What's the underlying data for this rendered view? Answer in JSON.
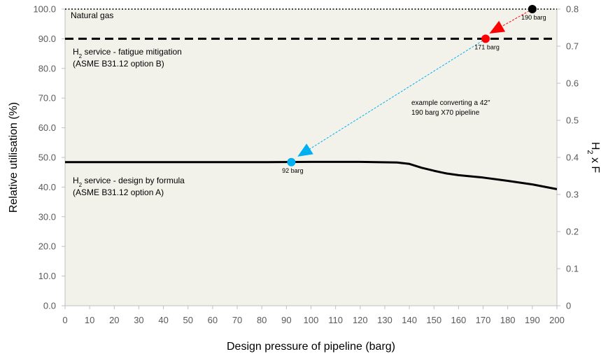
{
  "chart_data": {
    "type": "line",
    "xlabel": "Design pressure of pipeline (barg)",
    "ylabel": "Relative utilisation (%)",
    "y2label": "H₂ x F",
    "xlim": [
      0,
      200
    ],
    "ylim": [
      0,
      100
    ],
    "y2lim": [
      0,
      0.8
    ],
    "x_ticks": [
      "0",
      "10",
      "20",
      "30",
      "40",
      "50",
      "60",
      "70",
      "80",
      "90",
      "100",
      "110",
      "120",
      "130",
      "140",
      "150",
      "160",
      "170",
      "180",
      "190",
      "200"
    ],
    "y_ticks": [
      "0.0",
      "10.0",
      "20.0",
      "30.0",
      "40.0",
      "50.0",
      "60.0",
      "70.0",
      "80.0",
      "90.0",
      "100.0"
    ],
    "y2_ticks": [
      "0",
      "0.1",
      "0.2",
      "0.3",
      "0.4",
      "0.5",
      "0.6",
      "0.7",
      "0.8"
    ],
    "grid": false,
    "background": "#f2f2eb",
    "series": [
      {
        "key": "natural-gas",
        "color": "#000000",
        "style": "dotted",
        "points": [
          [
            0,
            100
          ],
          [
            200,
            100
          ]
        ]
      },
      {
        "key": "option-b",
        "color": "#000000",
        "style": "dashed",
        "points": [
          [
            0,
            90
          ],
          [
            200,
            90
          ]
        ]
      },
      {
        "key": "option-a",
        "color": "#000000",
        "style": "solid",
        "points": [
          [
            0,
            48.4
          ],
          [
            20,
            48.4
          ],
          [
            40,
            48.4
          ],
          [
            60,
            48.4
          ],
          [
            80,
            48.4
          ],
          [
            100,
            48.5
          ],
          [
            120,
            48.5
          ],
          [
            135,
            48.3
          ],
          [
            140,
            47.8
          ],
          [
            145,
            46.5
          ],
          [
            150,
            45.5
          ],
          [
            155,
            44.6
          ],
          [
            160,
            44.0
          ],
          [
            170,
            43.2
          ],
          [
            180,
            42.1
          ],
          [
            190,
            40.9
          ],
          [
            200,
            39.3
          ]
        ]
      }
    ],
    "series_labels": [
      {
        "key": "natural-gas",
        "lines": [
          "Natural gas"
        ]
      },
      {
        "key": "option-b",
        "lines": [
          "H₂ service - fatigue mitigation",
          "(ASME B31.12 option B)"
        ]
      },
      {
        "key": "option-a",
        "lines": [
          "H₂ service - design by formula",
          "(ASME B31.12 option A)"
        ]
      }
    ],
    "annotations": {
      "example_text": [
        "example converting a 42\"",
        "190 barg X70 pipeline"
      ],
      "points": [
        {
          "x": 190,
          "y": 100,
          "color": "#000000",
          "label": "190 barg"
        },
        {
          "x": 171,
          "y": 90,
          "color": "#ff0000",
          "label": "171 barg"
        },
        {
          "x": 92,
          "y": 48.4,
          "color": "#00b0f0",
          "label": "92 barg"
        }
      ],
      "arrows": [
        {
          "from": [
            190,
            100
          ],
          "to": [
            173,
            92
          ],
          "color": "#ff0000"
        },
        {
          "from": [
            171,
            90
          ],
          "to": [
            95,
            50.5
          ],
          "color": "#00b0f0"
        }
      ]
    }
  }
}
